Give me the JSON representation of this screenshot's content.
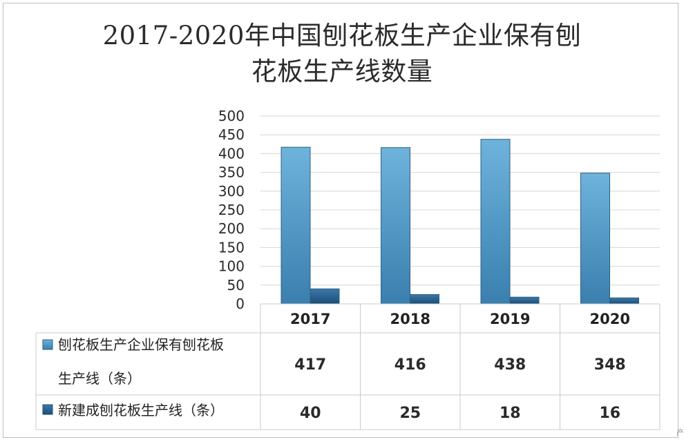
{
  "title_line1": "2017-2020年中国刨花板生产企业保有刨",
  "title_line2": "花板生产线数量",
  "footer_mark": "产",
  "chart_data": {
    "type": "bar",
    "title": "2017-2020年中国刨花板生产企业保有刨花板生产线数量",
    "categories": [
      "2017",
      "2018",
      "2019",
      "2020"
    ],
    "ylim": [
      0,
      500
    ],
    "yticks": [
      0,
      50,
      100,
      150,
      200,
      250,
      300,
      350,
      400,
      450,
      500
    ],
    "grid": true,
    "series": [
      {
        "name": "刨花板生产企业保有刨花板生产线（条）",
        "legend_line1": "刨花板生产企业保有刨花板",
        "legend_line2": "生产线（条）",
        "values": [
          417,
          416,
          438,
          348
        ],
        "color": "#4f9ac4"
      },
      {
        "name": "新建成刨花板生产线（条）",
        "legend_line1": "新建成刨花板生产线（条）",
        "values": [
          40,
          25,
          18,
          16
        ],
        "color": "#245d8c"
      }
    ],
    "data_table": true
  }
}
